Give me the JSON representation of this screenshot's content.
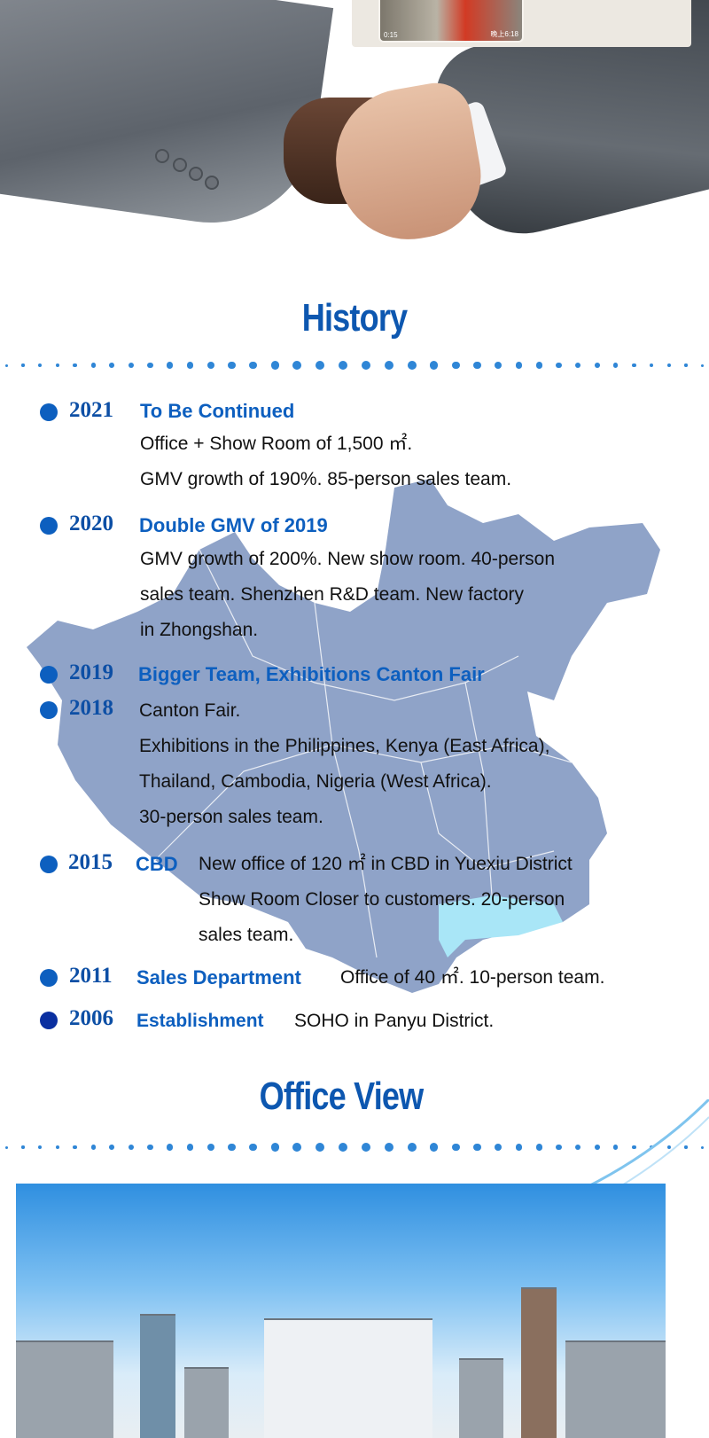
{
  "hero": {
    "chat_video": {
      "duration": "0:15",
      "timestamp": "晚上6:18"
    }
  },
  "history": {
    "title": "History",
    "entries": [
      {
        "year": "2021",
        "heading": "To Be Continued",
        "lines": [
          "Office + Show Room of 1,500 ㎡.",
          "GMV growth of 190%. 85-person sales team."
        ]
      },
      {
        "year": "2020",
        "heading": "Double GMV of 2019",
        "lines": [
          "GMV growth of 200%. New show room. 40-person",
          "sales team. Shenzhen R&D team. New factory",
          "in Zhongshan."
        ]
      },
      {
        "year": "2019",
        "heading": "Bigger Team, Exhibitions Canton Fair",
        "lines": []
      },
      {
        "year": "2018",
        "heading": "",
        "lines": [
          "Canton Fair.",
          "Exhibitions in the Philippines, Kenya (East Africa),",
          "Thailand, Cambodia, Nigeria (West Africa).",
          "30-person sales team."
        ]
      },
      {
        "year": "2015",
        "heading": "CBD",
        "lines": [
          "New office of 120 ㎡ in CBD in Yuexiu District",
          "Show Room Closer to customers. 20-person",
          "sales team."
        ]
      },
      {
        "year": "2011",
        "heading": "Sales Department",
        "lines": [
          "Office of 40 ㎡. 10-person team."
        ]
      },
      {
        "year": "2006",
        "heading": "Establishment",
        "lines": [
          "SOHO in Panyu District."
        ]
      }
    ]
  },
  "office": {
    "title": "Office View"
  },
  "colors": {
    "accent": "#0d57b0",
    "map": "#8fa3c8",
    "highlight": "#a9e6f7"
  }
}
